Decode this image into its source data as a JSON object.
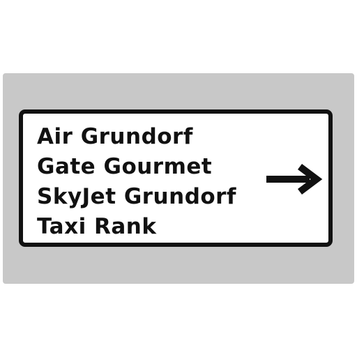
{
  "sign": {
    "destinations": [
      "Air Grundorf",
      "Gate Gourmet",
      "SkyJet Grundorf",
      "Taxi Rank"
    ],
    "arrow_icon": "arrow-right-icon",
    "colors": {
      "backplate": "#c8c8c8",
      "panel": "#ffffff",
      "legend": "#111111"
    }
  }
}
